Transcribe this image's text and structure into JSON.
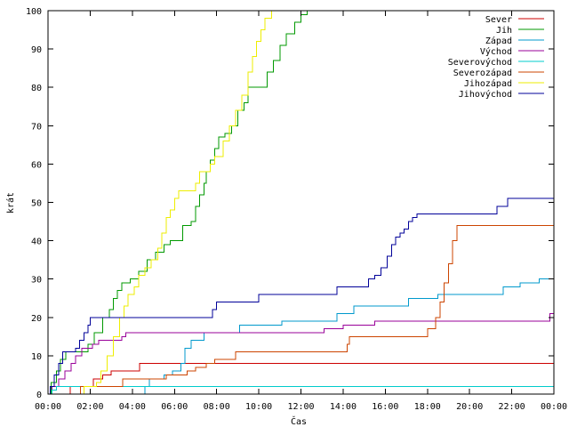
{
  "chart_data": {
    "type": "line",
    "step": true,
    "title": "",
    "xlabel": "Čas",
    "ylabel": "krát",
    "xlim_hours": [
      0,
      24
    ],
    "ylim": [
      0,
      100
    ],
    "x_tick_labels": [
      "00:00",
      "02:00",
      "04:00",
      "06:00",
      "08:00",
      "10:00",
      "12:00",
      "14:00",
      "16:00",
      "18:00",
      "20:00",
      "22:00",
      "00:00"
    ],
    "y_ticks": [
      0,
      10,
      20,
      30,
      40,
      50,
      60,
      70,
      80,
      90,
      100
    ],
    "grid": false,
    "legend_position": "top-right",
    "series": [
      {
        "name": "Sever",
        "color": "#cc0000",
        "points": [
          [
            0,
            0
          ],
          [
            1.0,
            0
          ],
          [
            1.05,
            2
          ],
          [
            2.1,
            2
          ],
          [
            2.15,
            4
          ],
          [
            2.6,
            5
          ],
          [
            3.0,
            6
          ],
          [
            4.3,
            6
          ],
          [
            4.35,
            8
          ],
          [
            24,
            8
          ]
        ]
      },
      {
        "name": "Jih",
        "color": "#009900",
        "points": [
          [
            0,
            0
          ],
          [
            0.15,
            3
          ],
          [
            0.4,
            6
          ],
          [
            0.6,
            9
          ],
          [
            0.85,
            11
          ],
          [
            1.6,
            11
          ],
          [
            1.9,
            13
          ],
          [
            2.2,
            16
          ],
          [
            2.6,
            20
          ],
          [
            2.9,
            22
          ],
          [
            3.1,
            25
          ],
          [
            3.3,
            27
          ],
          [
            3.5,
            29
          ],
          [
            3.9,
            30
          ],
          [
            4.3,
            32
          ],
          [
            4.7,
            35
          ],
          [
            5.1,
            37
          ],
          [
            5.5,
            39
          ],
          [
            5.8,
            40
          ],
          [
            6.3,
            40
          ],
          [
            6.4,
            44
          ],
          [
            6.8,
            45
          ],
          [
            7.0,
            49
          ],
          [
            7.2,
            52
          ],
          [
            7.4,
            55
          ],
          [
            7.5,
            58
          ],
          [
            7.7,
            61
          ],
          [
            7.9,
            64
          ],
          [
            8.1,
            67
          ],
          [
            8.4,
            68
          ],
          [
            8.7,
            70
          ],
          [
            9.0,
            74
          ],
          [
            9.3,
            76
          ],
          [
            9.5,
            80
          ],
          [
            10.2,
            80
          ],
          [
            10.4,
            84
          ],
          [
            10.7,
            87
          ],
          [
            11.0,
            91
          ],
          [
            11.3,
            94
          ],
          [
            11.7,
            97
          ],
          [
            12.0,
            99
          ],
          [
            12.3,
            100
          ],
          [
            24,
            100
          ]
        ]
      },
      {
        "name": "Západ",
        "color": "#0099cc",
        "points": [
          [
            0,
            0
          ],
          [
            4.5,
            0
          ],
          [
            4.6,
            2
          ],
          [
            4.8,
            4
          ],
          [
            5.5,
            5
          ],
          [
            5.9,
            6
          ],
          [
            6.3,
            8
          ],
          [
            6.5,
            12
          ],
          [
            6.8,
            14
          ],
          [
            7.4,
            16
          ],
          [
            8.8,
            16
          ],
          [
            9.1,
            18
          ],
          [
            10.8,
            18
          ],
          [
            11.1,
            19
          ],
          [
            13.4,
            19
          ],
          [
            13.7,
            21
          ],
          [
            14.5,
            23
          ],
          [
            16.8,
            23
          ],
          [
            17.1,
            25
          ],
          [
            18.5,
            26
          ],
          [
            21.3,
            26
          ],
          [
            21.6,
            28
          ],
          [
            22.4,
            29
          ],
          [
            23.3,
            30
          ],
          [
            24,
            30
          ]
        ]
      },
      {
        "name": "Východ",
        "color": "#990099",
        "points": [
          [
            0,
            0
          ],
          [
            0.2,
            2
          ],
          [
            0.5,
            4
          ],
          [
            0.8,
            6
          ],
          [
            1.1,
            8
          ],
          [
            1.3,
            10
          ],
          [
            1.6,
            12
          ],
          [
            2.1,
            13
          ],
          [
            2.4,
            14
          ],
          [
            3.5,
            15
          ],
          [
            3.7,
            16
          ],
          [
            13.0,
            16
          ],
          [
            13.1,
            17
          ],
          [
            14.0,
            18
          ],
          [
            15.5,
            19
          ],
          [
            23.6,
            19
          ],
          [
            23.8,
            21
          ],
          [
            24,
            20
          ]
        ]
      },
      {
        "name": "Severovýchod",
        "color": "#00cccc",
        "points": [
          [
            0,
            0
          ],
          [
            0.2,
            1
          ],
          [
            0.4,
            2
          ],
          [
            24,
            2
          ]
        ]
      },
      {
        "name": "Severozápad",
        "color": "#cc4400",
        "points": [
          [
            0,
            0
          ],
          [
            1.5,
            0
          ],
          [
            1.55,
            2
          ],
          [
            3.5,
            2
          ],
          [
            3.55,
            4
          ],
          [
            5.5,
            4
          ],
          [
            5.6,
            5
          ],
          [
            6.5,
            5
          ],
          [
            6.6,
            6
          ],
          [
            7.0,
            7
          ],
          [
            7.5,
            8
          ],
          [
            7.9,
            9
          ],
          [
            8.7,
            9
          ],
          [
            8.9,
            11
          ],
          [
            14.0,
            11
          ],
          [
            14.2,
            13
          ],
          [
            14.3,
            15
          ],
          [
            17.9,
            15
          ],
          [
            18.0,
            17
          ],
          [
            18.2,
            17
          ],
          [
            18.4,
            20
          ],
          [
            18.6,
            24
          ],
          [
            18.8,
            29
          ],
          [
            19.0,
            34
          ],
          [
            19.2,
            40
          ],
          [
            19.4,
            44
          ],
          [
            24,
            44
          ]
        ]
      },
      {
        "name": "Jihozápad",
        "color": "#eeee00",
        "points": [
          [
            0,
            0
          ],
          [
            1.6,
            0
          ],
          [
            1.7,
            2
          ],
          [
            2.3,
            3
          ],
          [
            2.5,
            6
          ],
          [
            2.8,
            10
          ],
          [
            3.1,
            15
          ],
          [
            3.4,
            20
          ],
          [
            3.6,
            23
          ],
          [
            3.8,
            26
          ],
          [
            4.1,
            28
          ],
          [
            4.3,
            31
          ],
          [
            4.6,
            33
          ],
          [
            4.9,
            35
          ],
          [
            5.2,
            38
          ],
          [
            5.4,
            42
          ],
          [
            5.6,
            46
          ],
          [
            5.8,
            48
          ],
          [
            6.0,
            51
          ],
          [
            6.2,
            53
          ],
          [
            6.8,
            53
          ],
          [
            7.0,
            55
          ],
          [
            7.2,
            58
          ],
          [
            7.7,
            60
          ],
          [
            7.9,
            62
          ],
          [
            8.3,
            66
          ],
          [
            8.6,
            70
          ],
          [
            8.9,
            74
          ],
          [
            9.2,
            78
          ],
          [
            9.5,
            84
          ],
          [
            9.7,
            88
          ],
          [
            9.9,
            92
          ],
          [
            10.1,
            95
          ],
          [
            10.3,
            98
          ],
          [
            10.6,
            100
          ],
          [
            24,
            100
          ]
        ]
      },
      {
        "name": "Jihovýchod",
        "color": "#000099",
        "points": [
          [
            0,
            0
          ],
          [
            0.1,
            2
          ],
          [
            0.3,
            5
          ],
          [
            0.5,
            8
          ],
          [
            0.7,
            11
          ],
          [
            1.3,
            12
          ],
          [
            1.5,
            14
          ],
          [
            1.7,
            16
          ],
          [
            1.9,
            18
          ],
          [
            2.0,
            20
          ],
          [
            7.7,
            20
          ],
          [
            7.8,
            22
          ],
          [
            8.0,
            24
          ],
          [
            9.8,
            24
          ],
          [
            10.0,
            26
          ],
          [
            13.5,
            26
          ],
          [
            13.7,
            28
          ],
          [
            15.0,
            28
          ],
          [
            15.2,
            30
          ],
          [
            15.5,
            31
          ],
          [
            15.8,
            33
          ],
          [
            16.1,
            36
          ],
          [
            16.3,
            39
          ],
          [
            16.5,
            41
          ],
          [
            16.7,
            42
          ],
          [
            16.9,
            43
          ],
          [
            17.1,
            45
          ],
          [
            17.3,
            46
          ],
          [
            17.5,
            47
          ],
          [
            21.0,
            47
          ],
          [
            21.3,
            49
          ],
          [
            21.8,
            51
          ],
          [
            24,
            51
          ]
        ]
      }
    ]
  }
}
